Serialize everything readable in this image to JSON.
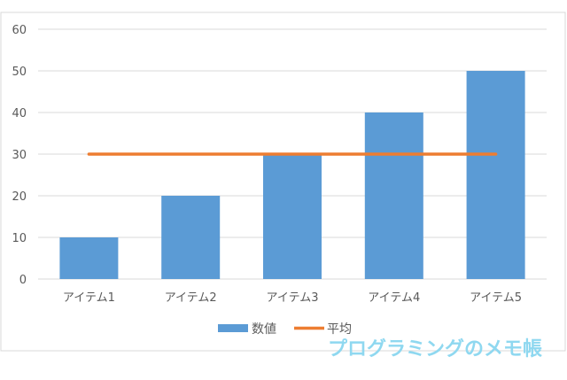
{
  "chart_data": {
    "type": "bar",
    "categories": [
      "アイテム1",
      "アイテム2",
      "アイテム3",
      "アイテム4",
      "アイテム5"
    ],
    "series": [
      {
        "name": "数値",
        "kind": "bar",
        "values": [
          10,
          20,
          30,
          40,
          50
        ],
        "color": "#5b9bd5"
      },
      {
        "name": "平均",
        "kind": "line",
        "values": [
          30,
          30,
          30,
          30,
          30
        ],
        "color": "#ed7d31"
      }
    ],
    "title": "",
    "xlabel": "",
    "ylabel": "",
    "ylim": [
      0,
      60
    ],
    "yticks": [
      0,
      10,
      20,
      30,
      40,
      50,
      60
    ],
    "grid": true,
    "legend_position": "bottom"
  },
  "watermark": {
    "text": "プログラミングのメモ帳",
    "color": "#8fd8f0"
  },
  "colors": {
    "gridline": "#d9d9d9",
    "axis_text": "#595959",
    "frame_border": "#d9d9d9"
  }
}
